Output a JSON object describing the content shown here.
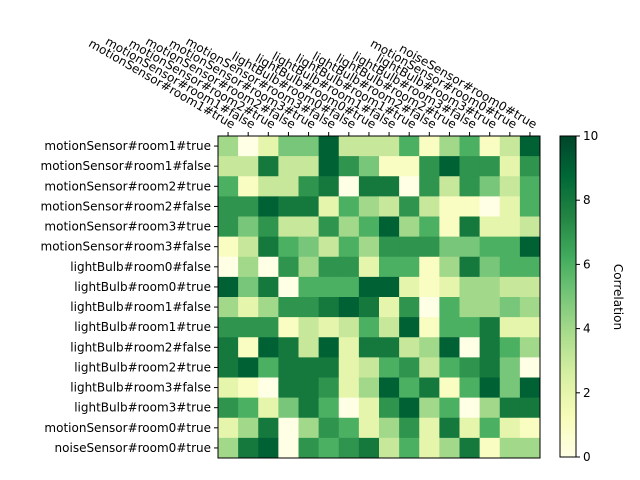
{
  "chart_data": {
    "type": "heatmap",
    "colormap": "YlGn",
    "labels": [
      "motionSensor#room1#true",
      "motionSensor#room1#false",
      "motionSensor#room2#true",
      "motionSensor#room2#false",
      "motionSensor#room3#true",
      "motionSensor#room3#false",
      "lightBulb#room0#false",
      "lightBulb#room0#true",
      "lightBulb#room1#false",
      "lightBulb#room1#true",
      "lightBulb#room2#false",
      "lightBulb#room2#true",
      "lightBulb#room3#false",
      "lightBulb#room3#true",
      "motionSensor#room0#true",
      "noiseSensor#room0#true"
    ],
    "values": [
      [
        4,
        0,
        2,
        5,
        5,
        9,
        3,
        3,
        3,
        6,
        1,
        4,
        6,
        1,
        3,
        9
      ],
      [
        3,
        3,
        8,
        3,
        3,
        9,
        7,
        5,
        1,
        1,
        7,
        9,
        7,
        7,
        2,
        7
      ],
      [
        6,
        1,
        3,
        3,
        7,
        8,
        0,
        8,
        8,
        0,
        7,
        3,
        7,
        5,
        3,
        6
      ],
      [
        7,
        7,
        9,
        8,
        8,
        2,
        6,
        4,
        3,
        7,
        3,
        1,
        1,
        0,
        2,
        6
      ],
      [
        7,
        5,
        7,
        3,
        3,
        7,
        4,
        6,
        9,
        4,
        6,
        1,
        8,
        2,
        2,
        3
      ],
      [
        1,
        3,
        8,
        6,
        5,
        3,
        6,
        4,
        7,
        7,
        7,
        5,
        5,
        6,
        6,
        9
      ],
      [
        0,
        4,
        0,
        7,
        4,
        7,
        7,
        2,
        6,
        6,
        1,
        4,
        8,
        5,
        6,
        6
      ],
      [
        9,
        5,
        8,
        0,
        6,
        6,
        6,
        9,
        9,
        2,
        1,
        2,
        4,
        4,
        3,
        3
      ],
      [
        4,
        2,
        4,
        7,
        7,
        8,
        9,
        8,
        2,
        7,
        0,
        6,
        4,
        4,
        5,
        4
      ],
      [
        7,
        7,
        7,
        1,
        3,
        2,
        3,
        6,
        3,
        9,
        1,
        6,
        6,
        8,
        2,
        2
      ],
      [
        8,
        1,
        9,
        8,
        3,
        9,
        2,
        8,
        8,
        3,
        4,
        9,
        0,
        8,
        6,
        4
      ],
      [
        8,
        9,
        6,
        8,
        8,
        8,
        2,
        3,
        6,
        7,
        3,
        6,
        7,
        8,
        5,
        0
      ],
      [
        2,
        1,
        0,
        8,
        8,
        7,
        2,
        4,
        9,
        6,
        8,
        1,
        6,
        9,
        5,
        9
      ],
      [
        7,
        6,
        2,
        5,
        8,
        6,
        0,
        2,
        7,
        9,
        4,
        6,
        0,
        4,
        8,
        8
      ],
      [
        2,
        4,
        8,
        0,
        4,
        7,
        6,
        2,
        4,
        7,
        2,
        8,
        2,
        6,
        2,
        1
      ],
      [
        4,
        8,
        9,
        0,
        7,
        6,
        7,
        8,
        3,
        6,
        2,
        4,
        8,
        1,
        4,
        4
      ]
    ],
    "vmin": 0,
    "vmax": 10,
    "colorbar_label": "Correlation",
    "colorbar_ticks": [
      0,
      2,
      4,
      6,
      8,
      10
    ]
  }
}
